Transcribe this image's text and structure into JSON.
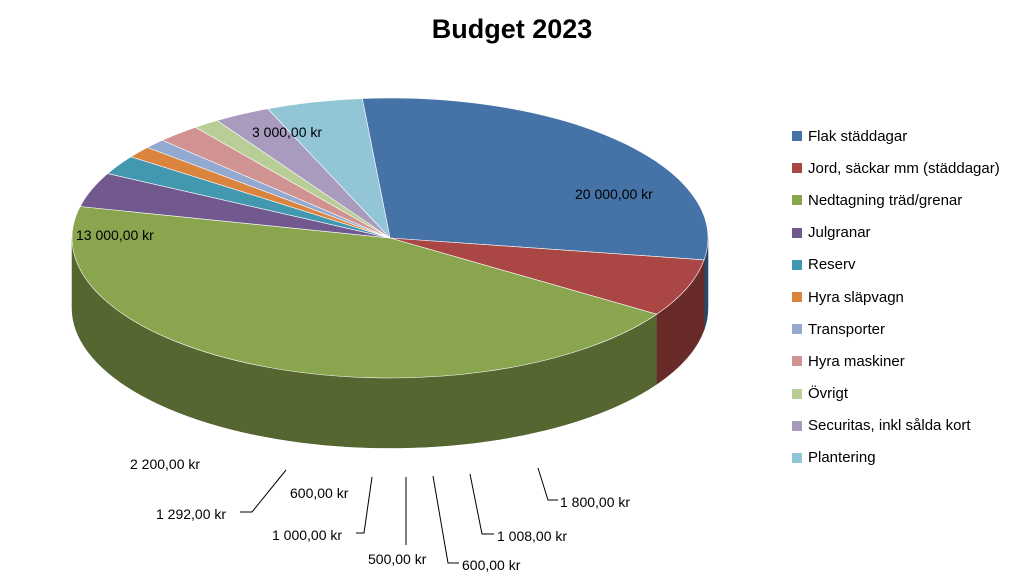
{
  "chart_data": {
    "type": "pie",
    "title": "Budget 2023",
    "legend_position": "right",
    "slices": [
      {
        "name": "Flak städdagar",
        "value": 13000,
        "label": "13 000,00 kr",
        "color": "#4572A7"
      },
      {
        "name": "Jord, säckar mm (städdagar)",
        "value": 3000,
        "label": "3 000,00 kr",
        "color": "#AA4643"
      },
      {
        "name": "Nedtagning träd/grenar",
        "value": 20000,
        "label": "20 000,00 kr",
        "color": "#89A54E"
      },
      {
        "name": "Julgranar",
        "value": 1800,
        "label": "1 800,00 kr",
        "color": "#71588F"
      },
      {
        "name": "Reserv",
        "value": 1008,
        "label": "1 008,00 kr",
        "color": "#4198AF"
      },
      {
        "name": "Hyra släpvagn",
        "value": 600,
        "label": "600,00 kr",
        "color": "#DB843D"
      },
      {
        "name": "Transporter",
        "value": 500,
        "label": "500,00 kr",
        "color": "#93A9CF"
      },
      {
        "name": "Hyra maskiner",
        "value": 1000,
        "label": "1 000,00 kr",
        "color": "#D19392"
      },
      {
        "name": "Övrigt",
        "value": 600,
        "label": "600,00 kr",
        "color": "#B9CD96"
      },
      {
        "name": "Securitas, inkl sålda kort",
        "value": 1292,
        "label": "1 292,00 kr",
        "color": "#A99BBD"
      },
      {
        "name": "Plantering",
        "value": 2200,
        "label": "2 200,00 kr",
        "color": "#92C5D6"
      }
    ]
  }
}
